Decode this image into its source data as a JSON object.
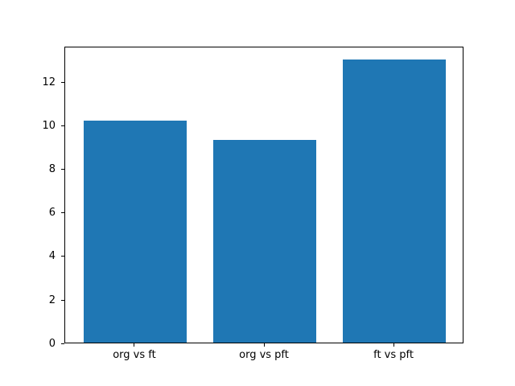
{
  "figure": {
    "background_color": "#ffffff",
    "spine_color": "#000000",
    "text_color": "#000000"
  },
  "chart_data": {
    "type": "bar",
    "title": "",
    "xlabel": "",
    "ylabel": "",
    "categories": [
      "org vs ft",
      "org vs pft",
      "ft vs pft"
    ],
    "values": [
      10.2,
      9.3,
      13.0
    ],
    "bar_color": "#1f77b4",
    "bar_width_units": 0.8,
    "xlim": [
      -0.54,
      2.54
    ],
    "ylim": [
      0,
      13.65
    ],
    "yticks": [
      0,
      2,
      4,
      6,
      8,
      10,
      12
    ],
    "grid": false,
    "legend": "none"
  }
}
